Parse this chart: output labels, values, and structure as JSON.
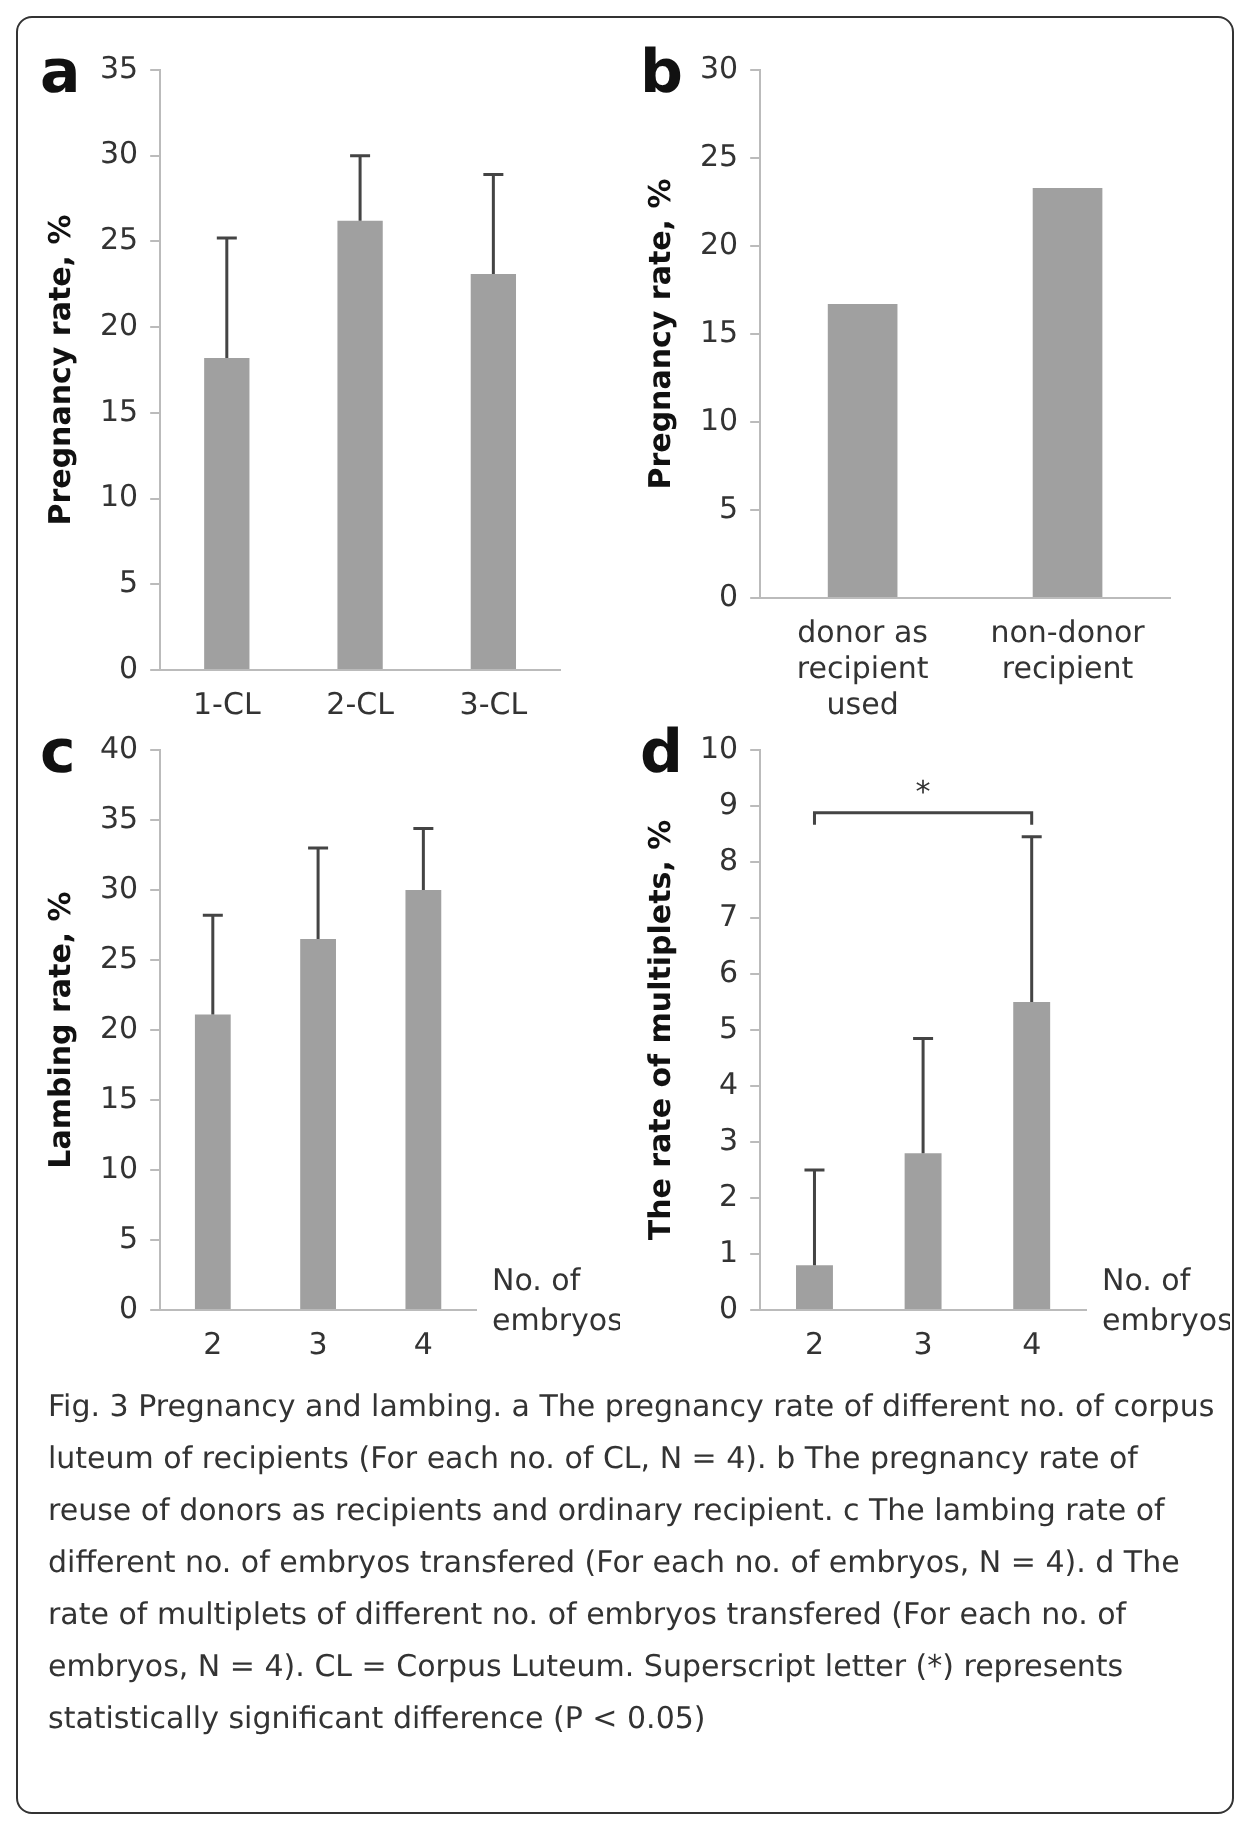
{
  "chart_data": [
    {
      "type": "bar",
      "title": "a",
      "ylabel": "Pregnancy rate, %",
      "categories": [
        "1-CL",
        "2-CL",
        "3-CL"
      ],
      "color": "#a0a0a0",
      "values": [
        18.2,
        26.2,
        23.1
      ],
      "errors": [
        [
          18.2,
          25.2
        ],
        [
          26.2,
          30
        ],
        [
          23.1,
          28.9
        ]
      ],
      "ylim": [
        0,
        35
      ],
      "yticks": [
        0,
        5,
        10,
        15,
        20,
        25,
        30,
        35
      ],
      "grid": false,
      "legend": false
    },
    {
      "type": "bar",
      "title": "b",
      "ylabel": "Pregnancy rate, %",
      "categories": [
        "donor as recipient used",
        "non-donor recipient"
      ],
      "color": "#a0a0a0",
      "values": [
        16.7,
        23.3
      ],
      "ylim": [
        0,
        30
      ],
      "yticks": [
        0,
        5,
        10,
        15,
        20,
        25,
        30
      ],
      "grid": false,
      "legend": false
    },
    {
      "type": "bar",
      "title": "c",
      "ylabel": "Lambing rate, %",
      "xlabel": "No. of embryos",
      "categories": [
        "2",
        "3",
        "4"
      ],
      "color": "#a0a0a0",
      "values": [
        21.1,
        26.5,
        30
      ],
      "errors": [
        [
          21.1,
          28.2
        ],
        [
          26.5,
          33
        ],
        [
          30,
          34.4
        ]
      ],
      "ylim": [
        0,
        40
      ],
      "yticks": [
        0,
        5,
        10,
        15,
        20,
        25,
        30,
        35,
        40
      ],
      "grid": false,
      "legend": false
    },
    {
      "type": "bar",
      "title": "d",
      "ylabel": "The rate of multiplets, %",
      "xlabel": "No. of embryos",
      "categories": [
        "2",
        "3",
        "4"
      ],
      "color": "#a0a0a0",
      "values": [
        0.8,
        2.8,
        5.5
      ],
      "errors": [
        [
          0.8,
          2.5
        ],
        [
          2.8,
          4.85
        ],
        [
          5.5,
          8.45
        ]
      ],
      "ylim": [
        0,
        10
      ],
      "yticks": [
        0,
        1,
        2,
        3,
        4,
        5,
        6,
        7,
        8,
        9,
        10
      ],
      "grid": false,
      "legend": false,
      "annotations": [
        "*",
        "Fig. 3 Pregnancy and lambing. a The pregnancy rate of different no. of corpus luteum of recipients (For each no. of CL, N = 4). b The pregnancy rate of reuse of donors as recipients and ordinary recipient. c The lambing rate of different no. of embryos transfered (For each no. of embryos, N = 4). d The rate of multiplets of different no. of embryos transfered (For each no. of embryos, N = 4). CL = Corpus Luteum. Superscript letter (*) represents statistically significant difference (P < 0.05)"
      ]
    }
  ]
}
